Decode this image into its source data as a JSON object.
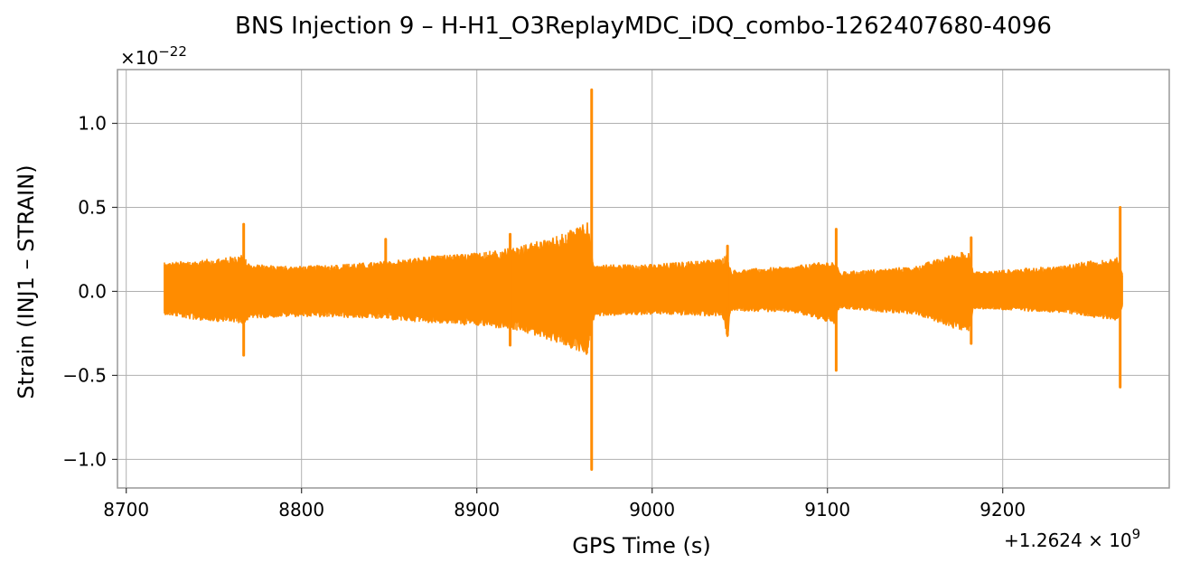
{
  "chart_data": {
    "type": "line",
    "title": "BNS Injection 9 – H-H1_O3ReplayMDC_iDQ_combo-1262407680-4096",
    "xlabel": "GPS Time (s)",
    "ylabel": "Strain (INJ1 – STRAIN)",
    "x_offset_label": "+1.2624 × 10",
    "x_offset_exponent": "9",
    "y_scale_label": "×10",
    "y_scale_exponent": "−22",
    "xlim": [
      8695,
      9295
    ],
    "ylim": [
      -1.17,
      1.32
    ],
    "grid": true,
    "x_ticks": [
      {
        "value": 8700,
        "label": "8700"
      },
      {
        "value": 8800,
        "label": "8800"
      },
      {
        "value": 8900,
        "label": "8900"
      },
      {
        "value": 9000,
        "label": "9000"
      },
      {
        "value": 9100,
        "label": "9100"
      },
      {
        "value": 9200,
        "label": "9200"
      }
    ],
    "y_ticks": [
      {
        "value": -1.0,
        "label": "−1.0"
      },
      {
        "value": -0.5,
        "label": "−0.5"
      },
      {
        "value": 0.0,
        "label": "0.0"
      },
      {
        "value": 0.5,
        "label": "0.5"
      },
      {
        "value": 1.0,
        "label": "1.0"
      }
    ],
    "series": [
      {
        "color": "#ff8c00",
        "x_range": [
          8722,
          9268
        ],
        "envelope": [
          [
            8722,
            0.15,
            -0.12
          ],
          [
            8740,
            0.16,
            -0.15
          ],
          [
            8760,
            0.18,
            -0.16
          ],
          [
            8766,
            0.19,
            -0.17
          ],
          [
            8771,
            0.14,
            -0.14
          ],
          [
            8800,
            0.13,
            -0.13
          ],
          [
            8840,
            0.15,
            -0.14
          ],
          [
            8870,
            0.18,
            -0.16
          ],
          [
            8900,
            0.2,
            -0.18
          ],
          [
            8920,
            0.23,
            -0.2
          ],
          [
            8940,
            0.27,
            -0.25
          ],
          [
            8955,
            0.32,
            -0.3
          ],
          [
            8963,
            0.36,
            -0.33
          ],
          [
            8967,
            0.14,
            -0.13
          ],
          [
            9000,
            0.14,
            -0.12
          ],
          [
            9040,
            0.17,
            -0.13
          ],
          [
            9043,
            0.2,
            -0.25
          ],
          [
            9045,
            0.11,
            -0.1
          ],
          [
            9080,
            0.13,
            -0.11
          ],
          [
            9104,
            0.16,
            -0.17
          ],
          [
            9107,
            0.1,
            -0.09
          ],
          [
            9150,
            0.13,
            -0.12
          ],
          [
            9181,
            0.22,
            -0.22
          ],
          [
            9183,
            0.1,
            -0.09
          ],
          [
            9230,
            0.13,
            -0.11
          ],
          [
            9266,
            0.18,
            -0.15
          ],
          [
            9268,
            0.1,
            -0.08
          ]
        ],
        "spikes": [
          {
            "x": 8767,
            "max": 0.4,
            "min": -0.38
          },
          {
            "x": 8848,
            "max": 0.31,
            "min": -0.04
          },
          {
            "x": 8919,
            "max": 0.34,
            "min": -0.32
          },
          {
            "x": 8965.5,
            "max": 1.2,
            "min": -1.06
          },
          {
            "x": 9043,
            "max": 0.27,
            "min": -0.26
          },
          {
            "x": 9105,
            "max": 0.37,
            "min": -0.47
          },
          {
            "x": 9182,
            "max": 0.32,
            "min": -0.31
          },
          {
            "x": 9267,
            "max": 0.5,
            "min": -0.57
          }
        ]
      }
    ]
  }
}
